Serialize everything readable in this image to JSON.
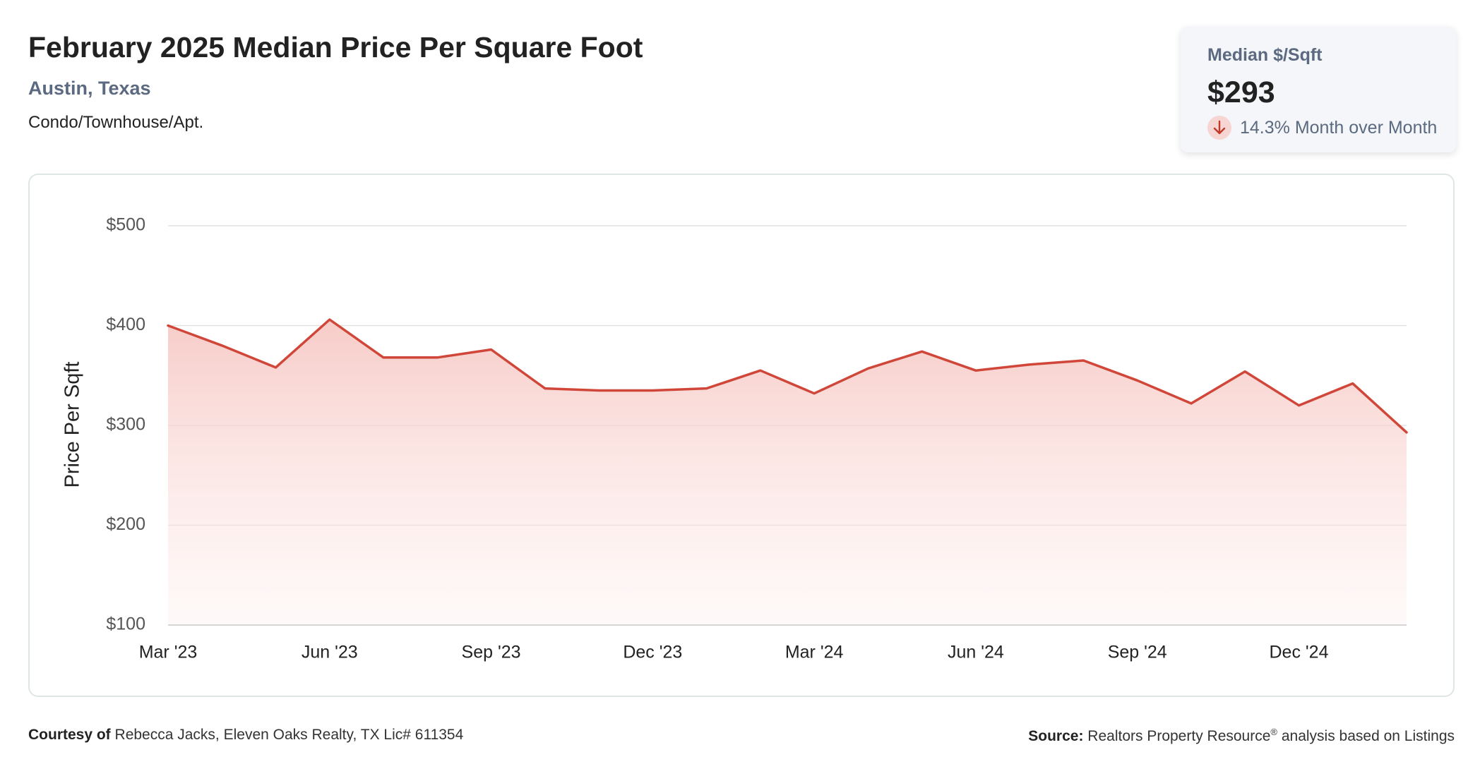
{
  "header": {
    "title": "February 2025 Median Price Per Square Foot",
    "location": "Austin, Texas",
    "property_type": "Condo/Townhouse/Apt."
  },
  "kpi": {
    "label": "Median $/Sqft",
    "value": "$293",
    "change_text": "14.3% Month over Month",
    "direction_icon": "arrow-down-icon"
  },
  "footer": {
    "courtesy_label": "Courtesy of",
    "courtesy_text": "Rebecca Jacks, Eleven Oaks Realty, TX Lic# 611354",
    "source_label": "Source:",
    "source_text": "Realtors Property Resource",
    "source_mark": "®",
    "source_suffix": "analysis based on Listings"
  },
  "colors": {
    "line": "#d0473a",
    "fill_top": "#f6c9c5",
    "grid": "#e3e3e3",
    "muted_text": "#5b6a80",
    "kpi_arrow_bg": "#f7d5d2"
  },
  "chart_data": {
    "type": "area",
    "title": "",
    "xlabel": "",
    "ylabel": "Price Per Sqft",
    "ylim": [
      100,
      500
    ],
    "y_ticks": [
      500,
      400,
      300,
      200,
      100
    ],
    "y_tick_labels": [
      "$500",
      "$400",
      "$300",
      "$200",
      "$100"
    ],
    "x_tick_labels": [
      "Mar '23",
      "Jun '23",
      "Sep '23",
      "Dec '23",
      "Mar '24",
      "Jun '24",
      "Sep '24",
      "Dec '24"
    ],
    "x_tick_index": [
      0,
      3,
      6,
      9,
      12,
      15,
      18,
      21
    ],
    "grid": true,
    "legend": "none",
    "x": [
      "Mar 2023",
      "Apr 2023",
      "May 2023",
      "Jun 2023",
      "Jul 2023",
      "Aug 2023",
      "Sep 2023",
      "Oct 2023",
      "Nov 2023",
      "Dec 2023",
      "Jan 2024",
      "Feb 2024",
      "Mar 2024",
      "Apr 2024",
      "May 2024",
      "Jun 2024",
      "Jul 2024",
      "Aug 2024",
      "Sep 2024",
      "Oct 2024",
      "Nov 2024",
      "Dec 2024",
      "Jan 2025",
      "Feb 2025"
    ],
    "series": [
      {
        "values": [
          400,
          380,
          358,
          406,
          368,
          368,
          376,
          337,
          335,
          335,
          337,
          355,
          332,
          357,
          374,
          355,
          361,
          365,
          345,
          322,
          354,
          320,
          342,
          293
        ]
      }
    ]
  }
}
